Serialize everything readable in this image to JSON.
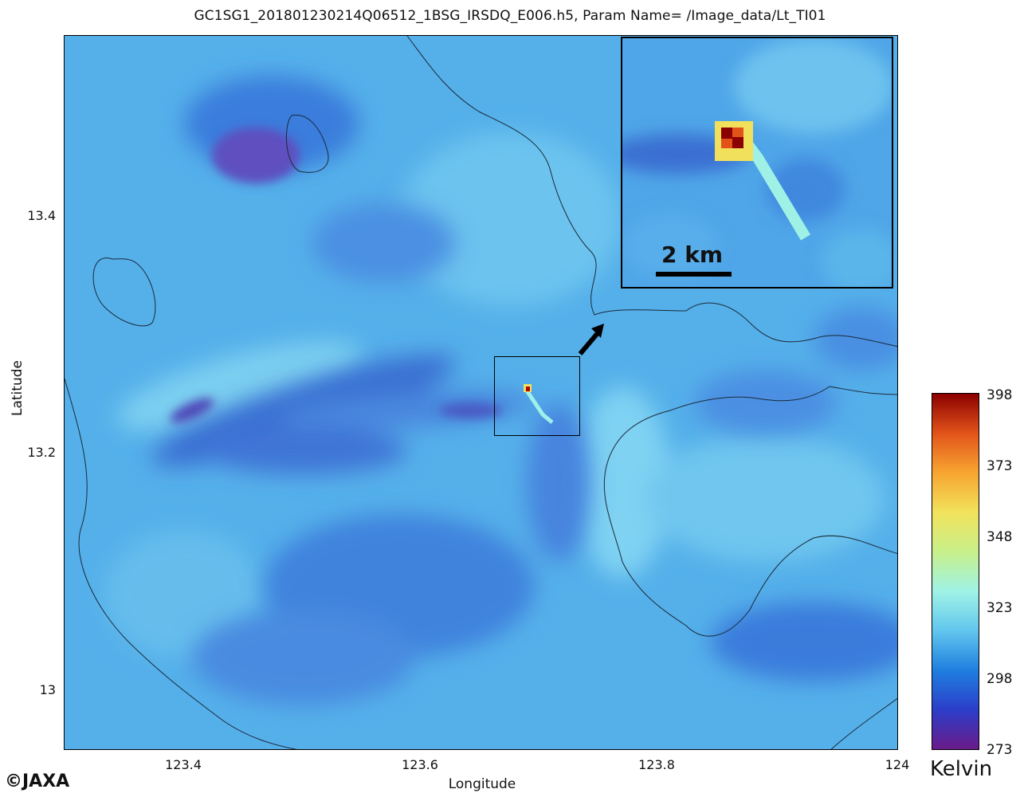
{
  "title": "GC1SG1_201801230214Q06512_1BSG_IRSDQ_E006.h5, Param Name= /Image_data/Lt_TI01",
  "axes": {
    "xlabel": "Longitude",
    "ylabel": "Latitude",
    "x_ticks": [
      "123.4",
      "123.6",
      "123.8",
      "124"
    ],
    "y_ticks": [
      "13.4",
      "13.2",
      "13"
    ],
    "x_range": [
      123.3,
      124.0
    ],
    "y_range": [
      12.95,
      13.55
    ]
  },
  "colorbar": {
    "unit": "Kelvin",
    "ticks": [
      "398",
      "373",
      "348",
      "323",
      "298",
      "273"
    ],
    "range": [
      273,
      398
    ],
    "colors": [
      "#6a1b8a",
      "#2b3ec9",
      "#1f7fe0",
      "#62c6ee",
      "#9ff3e6",
      "#c8f08a",
      "#f2e25c",
      "#f7a531",
      "#e2531a",
      "#8b0000"
    ]
  },
  "inset": {
    "scale_label": "2 km"
  },
  "copyright": "©JAXA",
  "colors": {
    "background_sea": "#58b3ec",
    "cool_patch": "#3f86df",
    "cold_patch": "#6a3fb6",
    "hotspot": "#8b0000"
  }
}
